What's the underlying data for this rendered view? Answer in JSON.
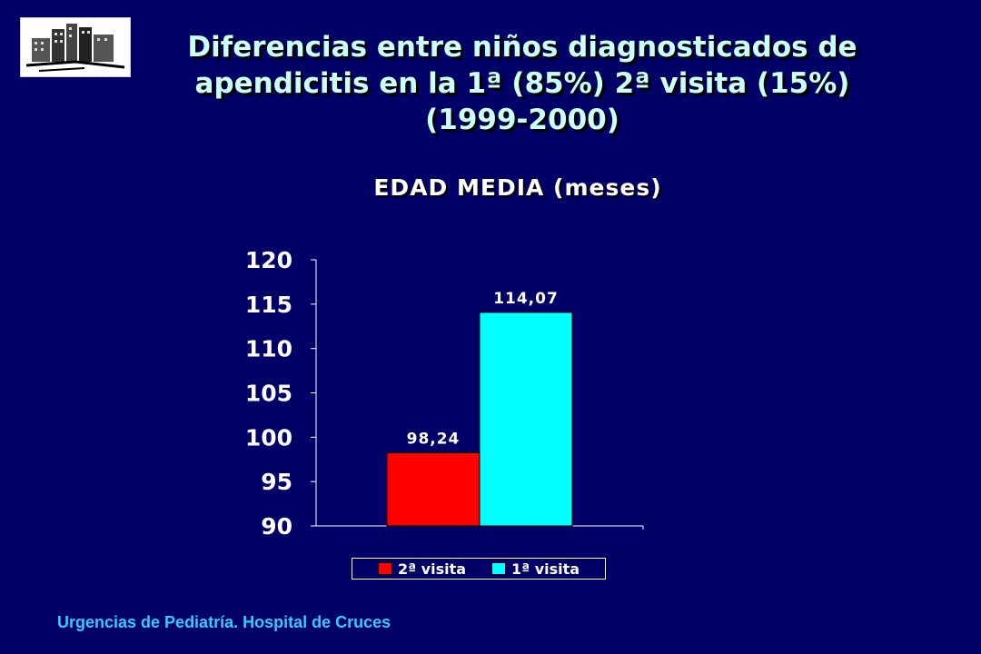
{
  "slide": {
    "title_lines": [
      "Diferencias entre niños diagnosticados de",
      "apendicitis en la 1ª (85%) 2ª visita (15%)",
      "(1999-2000)"
    ],
    "footer": "Urgencias de Pediatría. Hospital de Cruces",
    "logo_icon": "hospital-building-icon"
  },
  "chart_data": {
    "type": "bar",
    "title": "EDAD MEDIA  (meses)",
    "xlabel": "",
    "ylabel": "",
    "ylim": [
      90,
      120
    ],
    "yticks": [
      90,
      95,
      100,
      105,
      110,
      115,
      120
    ],
    "series": [
      {
        "name": "2ª visita",
        "values": [
          98.24
        ],
        "label": "98,24",
        "color": "#ff0000"
      },
      {
        "name": "1ª visita",
        "values": [
          114.07
        ],
        "label": "114,07",
        "color": "#00ffff"
      }
    ],
    "legend_position": "bottom",
    "grid": false
  }
}
